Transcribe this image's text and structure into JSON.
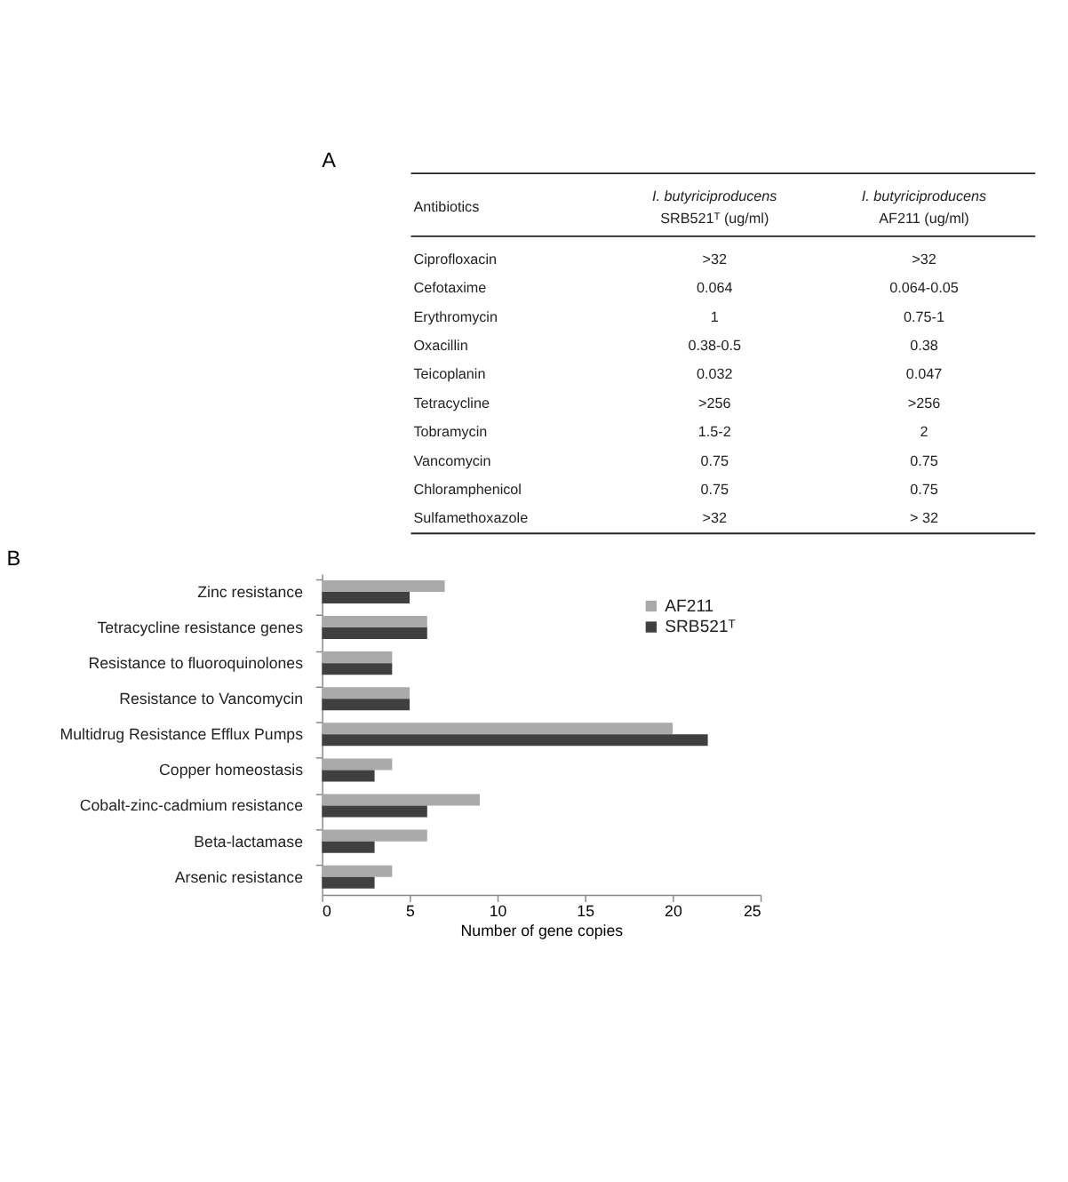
{
  "chart_data": [
    {
      "type": "other",
      "title": "A",
      "annotations": [
        "Antibiotics",
        "I. butyriciproducens",
        "SRB521ᵀ (ug/ml)",
        "I. butyriciproducens",
        "AF211 (ug/ml)",
        "Ciprofloxacin",
        ">32",
        ">32",
        "Cefotaxime",
        "0.064",
        "0.064-0.05",
        "Erythromycin",
        "1",
        "0.75-1",
        "Oxacillin",
        "0.38-0.5",
        "0.38",
        "Teicoplanin",
        "0.032",
        "0.047",
        "Tetracycline",
        ">256",
        ">256",
        "Tobramycin",
        "1.5-2",
        "2",
        "Vancomycin",
        "0.75",
        "0.75",
        "Chloramphenicol",
        "0.75",
        "0.75",
        "Sulfamethoxazole",
        ">32",
        "> 32"
      ]
    },
    {
      "type": "bar",
      "orientation": "horizontal",
      "title": "B",
      "xlabel": "Number  of gene copies",
      "categories": [
        "Zinc resistance",
        "Tetracycline resistance genes",
        "Resistance to fluoroquinolones",
        "Resistance to Vancomycin",
        "Multidrug Resistance Efflux Pumps",
        "Copper homeostasis",
        "Cobalt-zinc-cadmium resistance",
        "Beta-lactamase",
        "Arsenic resistance"
      ],
      "series": [
        {
          "name": "AF211",
          "color": "#aaaaaa",
          "values": [
            7,
            6,
            4,
            5,
            20,
            4,
            9,
            6,
            4
          ]
        },
        {
          "name": "SRB521ᵀ",
          "color": "#404040",
          "values": [
            5,
            6,
            4,
            5,
            22,
            3,
            6,
            3,
            3
          ]
        }
      ],
      "xlim": [
        0,
        25
      ],
      "xticks": [
        0,
        5,
        10,
        15,
        20,
        25
      ],
      "grid": false,
      "legend": "top right"
    }
  ]
}
